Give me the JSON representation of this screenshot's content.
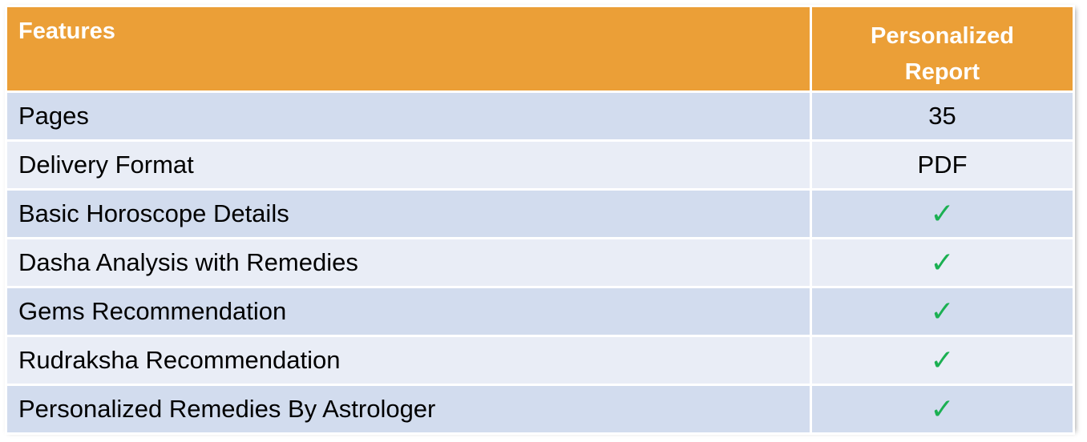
{
  "header": {
    "features_label": "Features",
    "report_label_line1": "Personalized",
    "report_label_line2": "Report"
  },
  "rows": [
    {
      "feature": "Pages",
      "value": "35"
    },
    {
      "feature": "Delivery Format",
      "value": "PDF"
    },
    {
      "feature": "Basic Horoscope Details",
      "value": "✓"
    },
    {
      "feature": "Dasha Analysis with Remedies",
      "value": "✓"
    },
    {
      "feature": "Gems Recommendation",
      "value": "✓"
    },
    {
      "feature": "Rudraksha Recommendation",
      "value": "✓"
    },
    {
      "feature": "Personalized Remedies By Astrologer",
      "value": "✓"
    }
  ],
  "colors": {
    "header_bg": "#eb9f37",
    "row_odd_bg": "#d2dcee",
    "row_even_bg": "#e9edf6",
    "check_color": "#1bb052"
  }
}
